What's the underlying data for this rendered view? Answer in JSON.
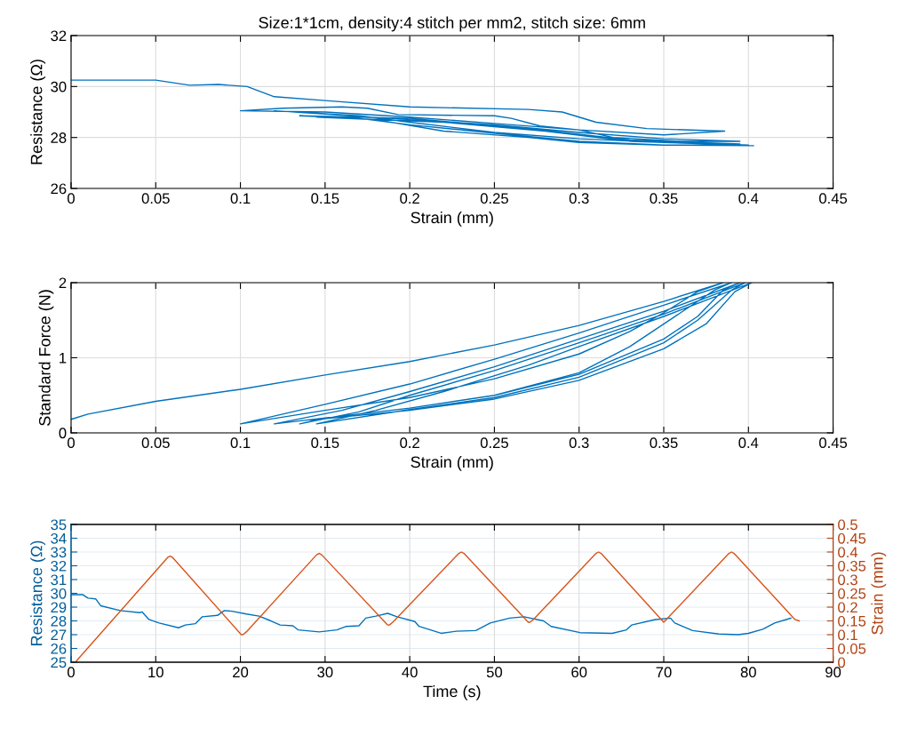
{
  "chart_data": [
    {
      "type": "line",
      "title": "Size:1*1cm, density:4 stitch per mm2, stitch size: 6mm",
      "xlabel": "Strain (mm)",
      "ylabel": "Resistance (Ω)",
      "xlim": [
        0,
        0.45
      ],
      "ylim": [
        26,
        32
      ],
      "xticks": [
        0,
        0.05,
        0.1,
        0.15,
        0.2,
        0.25,
        0.3,
        0.35,
        0.4,
        0.45
      ],
      "yticks": [
        26,
        28,
        30,
        32
      ],
      "grid": true,
      "series": [
        {
          "color": "#0072bd",
          "x": [
            0,
            0.05,
            0.07,
            0.087,
            0.104,
            0.12,
            0.15,
            0.2,
            0.27,
            0.29,
            0.31,
            0.34,
            0.386,
            0.35,
            0.3,
            0.277,
            0.26,
            0.25,
            0.193,
            0.175,
            0.16,
            0.125,
            0.1,
            0.15,
            0.2,
            0.25,
            0.3,
            0.32,
            0.36,
            0.395,
            0.35,
            0.3,
            0.25,
            0.2,
            0.12,
            0.17,
            0.2,
            0.25,
            0.3,
            0.35,
            0.395,
            0.33,
            0.27,
            0.2,
            0.135,
            0.17,
            0.2,
            0.26,
            0.3,
            0.35,
            0.4,
            0.33,
            0.28,
            0.22,
            0.145,
            0.18,
            0.22,
            0.27,
            0.3,
            0.35,
            0.403
          ],
          "values": [
            30.25,
            30.25,
            30.05,
            30.08,
            30.0,
            29.6,
            29.45,
            29.2,
            29.1,
            29.0,
            28.6,
            28.35,
            28.25,
            28.1,
            28.3,
            28.45,
            28.75,
            28.85,
            28.9,
            29.15,
            29.2,
            29.15,
            29.05,
            29.0,
            28.8,
            28.55,
            28.3,
            28.0,
            27.85,
            27.85,
            27.95,
            28.2,
            28.5,
            28.7,
            29.05,
            28.85,
            28.6,
            28.2,
            27.95,
            27.8,
            27.75,
            27.9,
            28.35,
            28.75,
            28.85,
            28.75,
            28.5,
            28.1,
            27.85,
            27.7,
            27.7,
            27.85,
            28.25,
            28.6,
            28.8,
            28.7,
            28.25,
            28.0,
            27.8,
            27.7,
            27.68
          ]
        }
      ]
    },
    {
      "type": "line",
      "xlabel": "Strain (mm)",
      "ylabel": "Standard Force (N)",
      "xlim": [
        0,
        0.45
      ],
      "ylim": [
        0,
        2
      ],
      "xticks": [
        0,
        0.05,
        0.1,
        0.15,
        0.2,
        0.25,
        0.3,
        0.35,
        0.4,
        0.45
      ],
      "yticks": [
        0,
        1,
        2
      ],
      "grid": true,
      "series": [
        {
          "color": "#0072bd",
          "x": [
            0,
            0.01,
            0.05,
            0.1,
            0.15,
            0.2,
            0.25,
            0.3,
            0.35,
            0.385,
            0.37,
            0.35,
            0.33,
            0.3,
            0.25,
            0.2,
            0.15,
            0.1,
            0.15,
            0.2,
            0.25,
            0.3,
            0.35,
            0.39,
            0.38,
            0.36,
            0.33,
            0.3,
            0.25,
            0.2,
            0.15,
            0.12,
            0.16,
            0.2,
            0.25,
            0.3,
            0.35,
            0.395,
            0.385,
            0.37,
            0.35,
            0.3,
            0.25,
            0.2,
            0.15,
            0.135,
            0.17,
            0.2,
            0.25,
            0.3,
            0.35,
            0.398,
            0.39,
            0.37,
            0.35,
            0.3,
            0.25,
            0.2,
            0.145,
            0.18,
            0.22,
            0.27,
            0.3,
            0.35,
            0.402,
            0.392,
            0.375,
            0.35,
            0.3,
            0.25,
            0.2,
            0.15
          ],
          "values": [
            0.18,
            0.25,
            0.42,
            0.58,
            0.77,
            0.95,
            1.17,
            1.43,
            1.75,
            2.0,
            1.88,
            1.6,
            1.35,
            1.05,
            0.72,
            0.47,
            0.3,
            0.12,
            0.38,
            0.65,
            0.98,
            1.33,
            1.7,
            2.0,
            1.9,
            1.6,
            1.15,
            0.8,
            0.5,
            0.33,
            0.2,
            0.12,
            0.3,
            0.55,
            0.88,
            1.25,
            1.62,
            2.0,
            1.9,
            1.55,
            1.25,
            0.78,
            0.5,
            0.33,
            0.2,
            0.12,
            0.28,
            0.5,
            0.83,
            1.2,
            1.58,
            2.0,
            1.9,
            1.5,
            1.2,
            0.74,
            0.47,
            0.31,
            0.12,
            0.3,
            0.55,
            0.9,
            1.15,
            1.55,
            2.0,
            1.88,
            1.45,
            1.12,
            0.7,
            0.45,
            0.3,
            0.19
          ]
        }
      ]
    },
    {
      "type": "line",
      "xlabel": "Time (s)",
      "ylabel": "Resistance (Ω)",
      "y2label": "Strain (mm)",
      "xlim": [
        0,
        90
      ],
      "ylim": [
        25,
        35
      ],
      "y2lim": [
        0,
        0.5
      ],
      "xticks": [
        0,
        10,
        20,
        30,
        40,
        50,
        60,
        70,
        80,
        90
      ],
      "yticks": [
        25,
        26,
        27,
        28,
        29,
        30,
        31,
        32,
        33,
        34,
        35
      ],
      "y2ticks": [
        0,
        0.05,
        0.1,
        0.15,
        0.2,
        0.25,
        0.3,
        0.35,
        0.4,
        0.45,
        0.5
      ],
      "grid": true,
      "series": [
        {
          "color": "#0072bd",
          "x": [
            0,
            1.4,
            2.0,
            2.9,
            3.5,
            5.8,
            8.1,
            8.4,
            9.2,
            10.4,
            12.7,
            13.5,
            14.7,
            15.5,
            17.3,
            18.1,
            19,
            20.7,
            22.2,
            23.6,
            24.7,
            26.2,
            26.8,
            29.3,
            31.4,
            32.5,
            34,
            34.8,
            36,
            37.4,
            38.5,
            40.6,
            41.1,
            43.7,
            45.5,
            47.8,
            49.5,
            51.8,
            53.5,
            55.8,
            56.7,
            60.1,
            63.9,
            65.6,
            66.2,
            69,
            70.8,
            71.3,
            73.4,
            76.5,
            78.8,
            80,
            81.7,
            83.1,
            85
          ],
          "values": [
            29.9,
            29.9,
            29.65,
            29.6,
            29.1,
            28.75,
            28.6,
            28.65,
            28.1,
            27.85,
            27.5,
            27.7,
            27.8,
            28.3,
            28.4,
            28.75,
            28.7,
            28.5,
            28.35,
            28.0,
            27.7,
            27.65,
            27.35,
            27.2,
            27.35,
            27.6,
            27.65,
            28.2,
            28.35,
            28.55,
            28.3,
            27.95,
            27.6,
            27.1,
            27.25,
            27.3,
            27.85,
            28.2,
            28.3,
            28.0,
            27.6,
            27.15,
            27.1,
            27.35,
            27.7,
            28.1,
            28.2,
            27.85,
            27.3,
            27.05,
            27.0,
            27.1,
            27.4,
            27.85,
            28.2
          ]
        },
        {
          "color": "#d95319",
          "axis": "y2",
          "x": [
            0.5,
            11.4,
            11.7,
            12.0,
            20.1,
            20.3,
            20.7,
            29.0,
            29.3,
            29.6,
            37.4,
            37.6,
            38.0,
            45.8,
            46.1,
            46.4,
            54.0,
            54.2,
            54.6,
            62.0,
            62.3,
            62.6,
            70.0,
            77.7,
            78.0,
            78.3,
            85.5,
            86.0
          ],
          "values": [
            0,
            0.38,
            0.385,
            0.38,
            0.1,
            0.1,
            0.11,
            0.39,
            0.395,
            0.39,
            0.135,
            0.135,
            0.145,
            0.395,
            0.4,
            0.395,
            0.145,
            0.145,
            0.155,
            0.395,
            0.4,
            0.395,
            0.145,
            0.395,
            0.4,
            0.395,
            0.155,
            0.15
          ]
        }
      ]
    }
  ]
}
